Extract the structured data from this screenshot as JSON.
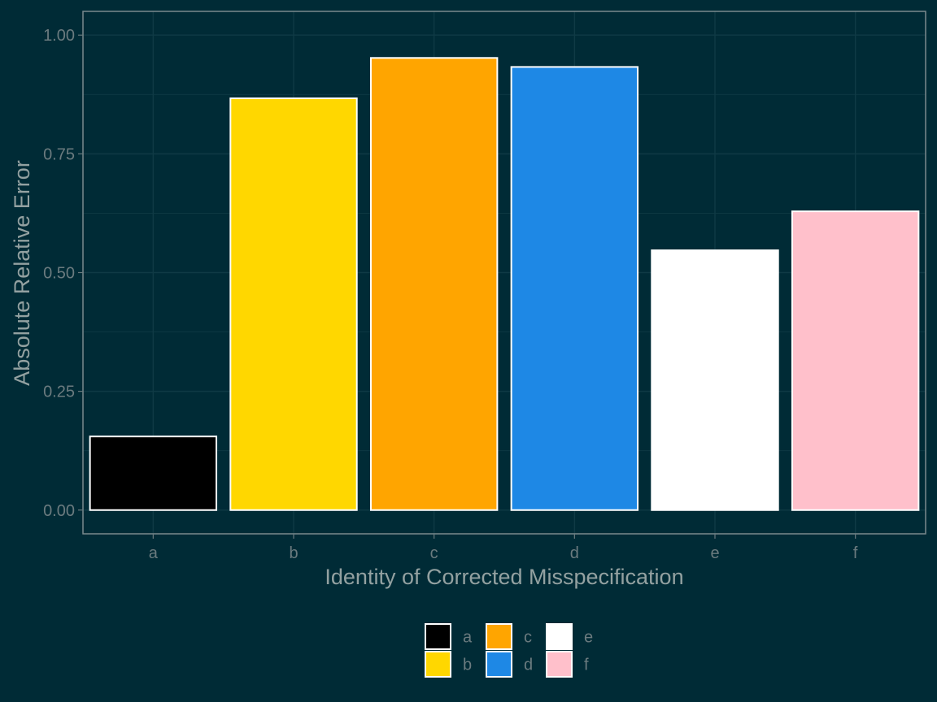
{
  "chart_data": {
    "type": "bar",
    "title": "",
    "xlabel": "Identity of Corrected Misspecification",
    "ylabel": "Absolute Relative Error",
    "categories": [
      "a",
      "b",
      "c",
      "d",
      "e",
      "f"
    ],
    "values": [
      0.155,
      0.867,
      0.952,
      0.933,
      0.547,
      0.629
    ],
    "colors": [
      "#000000",
      "#ffd700",
      "#ffa500",
      "#1e88e5",
      "#ffffff",
      "#ffc0cb"
    ],
    "ylim": [
      -0.05,
      1.05
    ],
    "yticks": [
      0.0,
      0.25,
      0.5,
      0.75,
      1.0
    ],
    "ytick_labels": [
      "0.00",
      "0.25",
      "0.50",
      "0.75",
      "1.00"
    ],
    "grid": true,
    "legend": {
      "position": "bottom",
      "entries": [
        "a",
        "b",
        "c",
        "d",
        "e",
        "f"
      ]
    }
  },
  "theme": {
    "background": "#002b36",
    "grid_color": "#0f3a45",
    "panel_border": "#7a8a8d",
    "bar_outline": "#ffffff"
  }
}
